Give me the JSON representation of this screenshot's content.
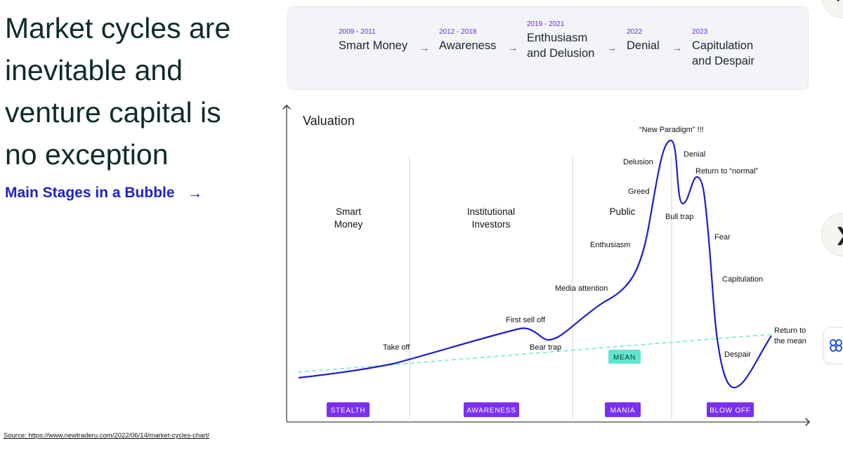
{
  "headline": [
    "Market cycles are",
    "inevitable and",
    "venture capital is",
    "no exception"
  ],
  "stages_link": {
    "label": "Main Stages in a Bubble",
    "arrow": "→"
  },
  "source": "Source: https://www.newtraderu.com/2022/06/14/market-cycles-chart/",
  "timeline": [
    {
      "years": "2009 - 2011",
      "label": [
        "Smart Money"
      ]
    },
    {
      "years": "2012 - 2018",
      "label": [
        "Awareness"
      ]
    },
    {
      "years": "2019 - 2021",
      "label": [
        "Enthusiasm",
        "and Delusion"
      ]
    },
    {
      "years": "2022",
      "label": [
        "Denial"
      ]
    },
    {
      "years": "2023",
      "label": [
        "Capitulation",
        "and Despair"
      ]
    }
  ],
  "timeline_arrow": "→",
  "diagram": {
    "axis_label": "Valuation",
    "sections": [
      {
        "title": [
          "Smart",
          "Money"
        ],
        "tag": "STEALTH"
      },
      {
        "title": [
          "Institutional",
          "Investors"
        ],
        "tag": "AWARENESS"
      },
      {
        "title": [
          "Public"
        ],
        "tag": "MANIA"
      },
      {
        "title": [],
        "tag": "BLOW OFF"
      }
    ],
    "annotations": [
      "Take off",
      "First sell off",
      "Bear trap",
      "Media attention",
      "Enthusiasm",
      "Greed",
      "Delusion",
      "“New Paradigm” !!!",
      "Denial",
      "Return to “normal”",
      "Bull trap",
      "Fear",
      "Capitulation",
      "Despair",
      "Return to",
      "the mean"
    ],
    "mean_label": "MEAN",
    "colors": {
      "curve": "#1c1fc7",
      "mean_line": "#6fe3d2",
      "tag": "#7b2ff0",
      "mean_badge": "#5fe6cf"
    }
  },
  "icons": {
    "next": "chevron-right-icon",
    "close": "close-icon",
    "widget": "clover-icon"
  }
}
